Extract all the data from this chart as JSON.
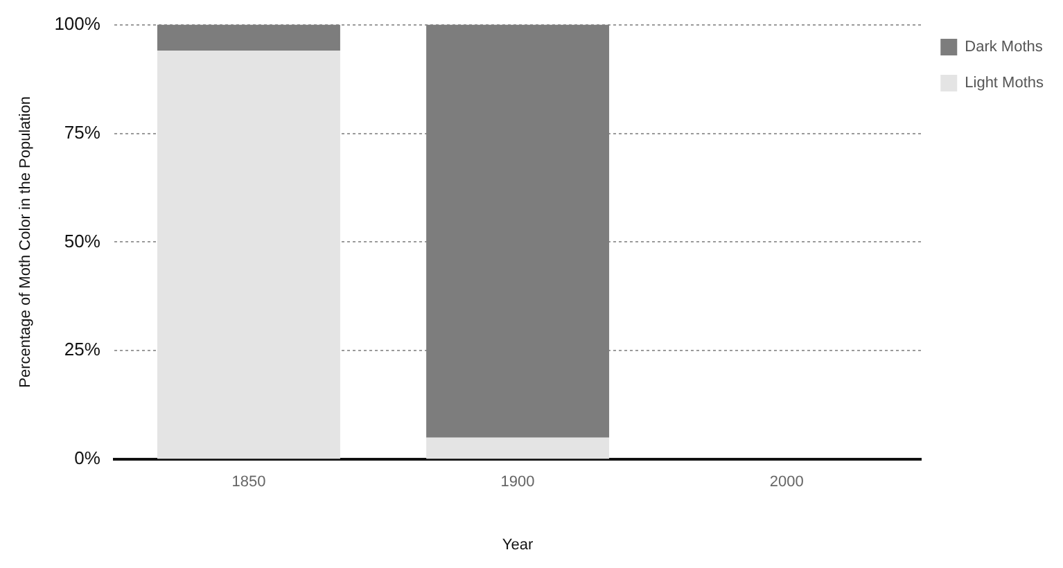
{
  "chart_data": {
    "type": "bar",
    "stacked": true,
    "xlabel": "Year",
    "ylabel": "Percentage of Moth Color in the Population",
    "categories": [
      "1850",
      "1900",
      "2000"
    ],
    "series": [
      {
        "name": "Light Moths",
        "color": "#e4e4e4",
        "values": [
          94,
          5,
          null
        ]
      },
      {
        "name": "Dark Moths",
        "color": "#7d7d7d",
        "values": [
          6,
          95,
          null
        ]
      }
    ],
    "ylim": [
      0,
      100
    ],
    "yticks": [
      {
        "value": 0,
        "label": "0%"
      },
      {
        "value": 25,
        "label": "25%"
      },
      {
        "value": 50,
        "label": "50%"
      },
      {
        "value": 75,
        "label": "75%"
      },
      {
        "value": 100,
        "label": "100%"
      }
    ],
    "grid": "y",
    "legend": "top right"
  }
}
